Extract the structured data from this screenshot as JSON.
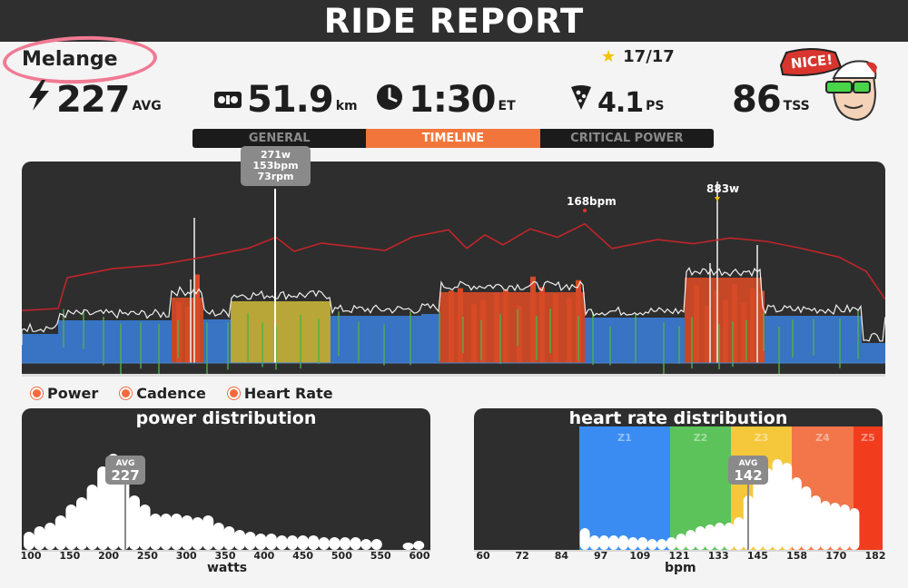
{
  "header": {
    "title": "RIDE REPORT"
  },
  "rider": {
    "name": "Melange"
  },
  "achievement": {
    "count": "17/17",
    "icon": "star-icon"
  },
  "stats": {
    "power": {
      "value": "227",
      "unit": "AVG",
      "icon": "lightning-icon"
    },
    "distance": {
      "value": "51.9",
      "unit": "km",
      "icon": "bike-icon"
    },
    "time": {
      "value": "1:30",
      "unit": "ET",
      "icon": "clock-icon"
    },
    "pizza": {
      "value": "4.1",
      "unit": "PS",
      "icon": "pizza-icon"
    },
    "tss": {
      "value": "86",
      "unit": "TSS",
      "icon": "avatar-icon"
    }
  },
  "badge": {
    "text": "NICE!"
  },
  "tabs": [
    {
      "label": "GENERAL",
      "active": false
    },
    {
      "label": "TIMELINE",
      "active": true
    },
    {
      "label": "CRITICAL POWER",
      "active": false
    }
  ],
  "timeline": {
    "tooltip": {
      "power": "271w",
      "hr": "153bpm",
      "cadence": "73rpm"
    },
    "max_hr_label": "168bpm",
    "max_power_label": "883w"
  },
  "legend": [
    {
      "label": "Power"
    },
    {
      "label": "Cadence"
    },
    {
      "label": "Heart Rate"
    }
  ],
  "power_dist": {
    "title": "power distribution",
    "avg_label": "AVG",
    "avg_value": "227",
    "axis_title": "watts",
    "ticks": [
      "100",
      "150",
      "200",
      "250",
      "300",
      "350",
      "400",
      "450",
      "500",
      "550",
      "600"
    ]
  },
  "hr_dist": {
    "title": "heart rate distribution",
    "avg_label": "AVG",
    "avg_value": "142",
    "axis_title": "bpm",
    "ticks": [
      "60",
      "72",
      "84",
      "97",
      "109",
      "121",
      "133",
      "145",
      "158",
      "170",
      "182"
    ],
    "zones": [
      {
        "label": "Z1",
        "color": "#3a8cf2"
      },
      {
        "label": "Z2",
        "color": "#5cc35a"
      },
      {
        "label": "Z3",
        "color": "#f5c83c"
      },
      {
        "label": "Z4",
        "color": "#f2764a"
      },
      {
        "label": "Z5",
        "color": "#f23c1e"
      }
    ]
  },
  "colors": {
    "header_bg": "#2f2f2f",
    "panel_bg": "#2e2e2e",
    "accent_orange": "#f2763c",
    "hr_line": "#c0252a",
    "power_blue": "#3a7bd5",
    "power_yellow": "#c8b43a",
    "power_red": "#d64a26",
    "highlight_pink": "#f07a94"
  }
}
